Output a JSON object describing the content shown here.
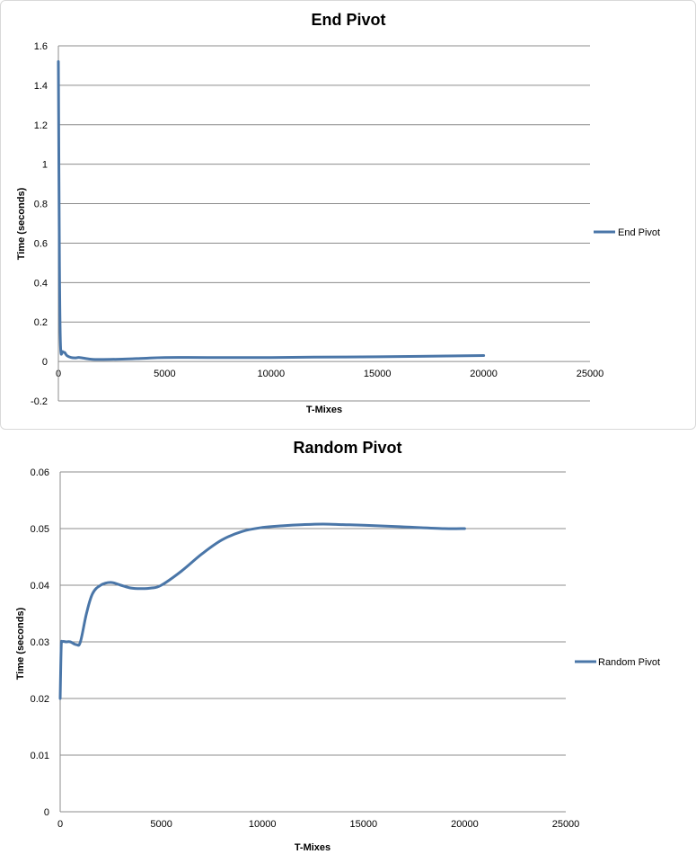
{
  "chart_data": [
    {
      "type": "line",
      "title": "End Pivot",
      "xlabel": "T-Mixes",
      "ylabel": "Time (seconds)",
      "xlim": [
        0,
        25000
      ],
      "ylim": [
        -0.2,
        1.6
      ],
      "x_ticks": [
        "0",
        "5000",
        "10000",
        "15000",
        "20000",
        "25000"
      ],
      "y_ticks": [
        "-0.2",
        "0",
        "0.2",
        "0.4",
        "0.6",
        "0.8",
        "1",
        "1.2",
        "1.4",
        "1.6"
      ],
      "grid": true,
      "legend_position": "right",
      "series": [
        {
          "name": "End Pivot",
          "color": "#4a76a8",
          "x": [
            0,
            50,
            100,
            200,
            300,
            400,
            600,
            800,
            1000,
            1500,
            2000,
            3000,
            4000,
            5000,
            7000,
            10000,
            12000,
            15000,
            17000,
            20000
          ],
          "y": [
            1.52,
            0.5,
            0.08,
            0.05,
            0.045,
            0.03,
            0.02,
            0.018,
            0.02,
            0.012,
            0.01,
            0.012,
            0.016,
            0.02,
            0.02,
            0.02,
            0.022,
            0.024,
            0.026,
            0.03
          ]
        }
      ]
    },
    {
      "type": "line",
      "title": "Random Pivot",
      "xlabel": "T-Mixes",
      "ylabel": "Time (seconds)",
      "xlim": [
        0,
        25000
      ],
      "ylim": [
        0,
        0.06
      ],
      "x_ticks": [
        "0",
        "5000",
        "10000",
        "15000",
        "20000",
        "25000"
      ],
      "y_ticks": [
        "0",
        "0.01",
        "0.02",
        "0.03",
        "0.04",
        "0.05",
        "0.06"
      ],
      "grid": true,
      "legend_position": "right",
      "series": [
        {
          "name": "Random Pivot",
          "color": "#4a76a8",
          "x": [
            0,
            50,
            100,
            300,
            500,
            800,
            1000,
            1300,
            1600,
            2000,
            2500,
            3000,
            3500,
            4000,
            4500,
            5000,
            6000,
            7000,
            8000,
            9000,
            10000,
            11000,
            12000,
            13000,
            14000,
            15000,
            17000,
            19000,
            20000
          ],
          "y": [
            0.02,
            0.029,
            0.03,
            0.03,
            0.03,
            0.0295,
            0.03,
            0.035,
            0.0385,
            0.04,
            0.0405,
            0.04,
            0.0395,
            0.0394,
            0.0395,
            0.04,
            0.0425,
            0.0455,
            0.048,
            0.0495,
            0.0502,
            0.0505,
            0.0507,
            0.0508,
            0.0507,
            0.0506,
            0.0503,
            0.05,
            0.05
          ]
        }
      ]
    }
  ]
}
